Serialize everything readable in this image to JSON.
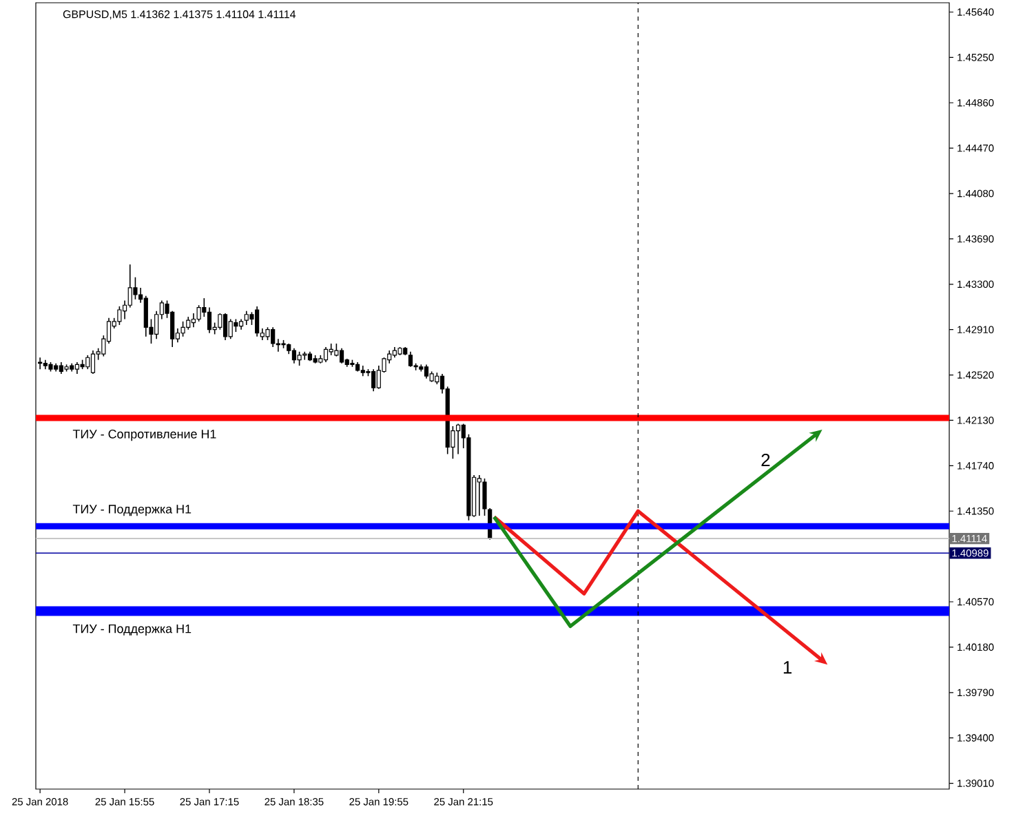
{
  "chart_data": {
    "type": "candlestick",
    "title": "GBPUSD,M5  1.41362 1.41375 1.41104 1.41114",
    "x": [
      "2018-01-25T14:35",
      "2018-01-25T14:40",
      "2018-01-25T14:45",
      "2018-01-25T14:50",
      "2018-01-25T14:55",
      "2018-01-25T15:00",
      "2018-01-25T15:05",
      "2018-01-25T15:10",
      "2018-01-25T15:15",
      "2018-01-25T15:20",
      "2018-01-25T15:25",
      "2018-01-25T15:30",
      "2018-01-25T15:35",
      "2018-01-25T15:40",
      "2018-01-25T15:45",
      "2018-01-25T15:50",
      "2018-01-25T15:55",
      "2018-01-25T16:00",
      "2018-01-25T16:05",
      "2018-01-25T16:10",
      "2018-01-25T16:15",
      "2018-01-25T16:20",
      "2018-01-25T16:25",
      "2018-01-25T16:30",
      "2018-01-25T16:35",
      "2018-01-25T16:40",
      "2018-01-25T16:45",
      "2018-01-25T16:50",
      "2018-01-25T16:55",
      "2018-01-25T17:00",
      "2018-01-25T17:05",
      "2018-01-25T17:10",
      "2018-01-25T17:15",
      "2018-01-25T17:20",
      "2018-01-25T17:25",
      "2018-01-25T17:30",
      "2018-01-25T17:35",
      "2018-01-25T17:40",
      "2018-01-25T17:45",
      "2018-01-25T17:50",
      "2018-01-25T17:55",
      "2018-01-25T18:00",
      "2018-01-25T18:05",
      "2018-01-25T18:10",
      "2018-01-25T18:15",
      "2018-01-25T18:20",
      "2018-01-25T18:25",
      "2018-01-25T18:30",
      "2018-01-25T18:35",
      "2018-01-25T18:40",
      "2018-01-25T18:45",
      "2018-01-25T18:50",
      "2018-01-25T18:55",
      "2018-01-25T19:00",
      "2018-01-25T19:05",
      "2018-01-25T19:10",
      "2018-01-25T19:15",
      "2018-01-25T19:20",
      "2018-01-25T19:25",
      "2018-01-25T19:30",
      "2018-01-25T19:35",
      "2018-01-25T19:40",
      "2018-01-25T19:45",
      "2018-01-25T19:50",
      "2018-01-25T19:55",
      "2018-01-25T20:00",
      "2018-01-25T20:05",
      "2018-01-25T20:10",
      "2018-01-25T20:15",
      "2018-01-25T20:20",
      "2018-01-25T20:25",
      "2018-01-25T20:30",
      "2018-01-25T20:35",
      "2018-01-25T20:40",
      "2018-01-25T20:45",
      "2018-01-25T20:50",
      "2018-01-25T20:55",
      "2018-01-25T21:00",
      "2018-01-25T21:05",
      "2018-01-25T21:10",
      "2018-01-25T21:15",
      "2018-01-25T21:20",
      "2018-01-25T21:25",
      "2018-01-25T21:30",
      "2018-01-25T21:35",
      "2018-01-25T21:40"
    ],
    "ohlc": [
      [
        1.4263,
        1.4267,
        1.4257,
        1.4262
      ],
      [
        1.4262,
        1.4265,
        1.4257,
        1.426
      ],
      [
        1.4261,
        1.4263,
        1.4255,
        1.4257
      ],
      [
        1.426,
        1.4262,
        1.4255,
        1.4257
      ],
      [
        1.426,
        1.4263,
        1.4253,
        1.4255
      ],
      [
        1.4257,
        1.4261,
        1.4255,
        1.4259
      ],
      [
        1.426,
        1.4262,
        1.4255,
        1.4257
      ],
      [
        1.4257,
        1.4263,
        1.4253,
        1.4261
      ],
      [
        1.4261,
        1.4265,
        1.4257,
        1.4259
      ],
      [
        1.4259,
        1.4269,
        1.4257,
        1.4267
      ],
      [
        1.4254,
        1.4273,
        1.4253,
        1.427
      ],
      [
        1.427,
        1.4275,
        1.4265,
        1.4272
      ],
      [
        1.427,
        1.4286,
        1.4268,
        1.4283
      ],
      [
        1.4281,
        1.4301,
        1.4279,
        1.4298
      ],
      [
        1.4294,
        1.4301,
        1.4292,
        1.4298
      ],
      [
        1.4298,
        1.4311,
        1.4295,
        1.4308
      ],
      [
        1.4307,
        1.4316,
        1.43,
        1.4312
      ],
      [
        1.4312,
        1.4347,
        1.431,
        1.4327
      ],
      [
        1.4327,
        1.4336,
        1.4317,
        1.4321
      ],
      [
        1.4321,
        1.4327,
        1.4314,
        1.4317
      ],
      [
        1.4318,
        1.432,
        1.4285,
        1.4293
      ],
      [
        1.4293,
        1.43,
        1.4279,
        1.4287
      ],
      [
        1.4287,
        1.4307,
        1.4283,
        1.4304
      ],
      [
        1.4304,
        1.4316,
        1.43,
        1.4314
      ],
      [
        1.4313,
        1.4316,
        1.4301,
        1.4305
      ],
      [
        1.4306,
        1.4307,
        1.4276,
        1.4283
      ],
      [
        1.4283,
        1.4292,
        1.428,
        1.4288
      ],
      [
        1.4288,
        1.4298,
        1.4285,
        1.4293
      ],
      [
        1.4293,
        1.4302,
        1.4291,
        1.4299
      ],
      [
        1.4297,
        1.4305,
        1.4293,
        1.43
      ],
      [
        1.43,
        1.4312,
        1.4298,
        1.431
      ],
      [
        1.431,
        1.4318,
        1.4302,
        1.4306
      ],
      [
        1.4306,
        1.431,
        1.4288,
        1.4291
      ],
      [
        1.4291,
        1.4297,
        1.4287,
        1.4293
      ],
      [
        1.4293,
        1.4305,
        1.4291,
        1.4304
      ],
      [
        1.4304,
        1.4305,
        1.4282,
        1.4285
      ],
      [
        1.4285,
        1.43,
        1.4283,
        1.4298
      ],
      [
        1.4297,
        1.43,
        1.4289,
        1.4294
      ],
      [
        1.4294,
        1.43,
        1.4291,
        1.4298
      ],
      [
        1.4299,
        1.4307,
        1.4295,
        1.4304
      ],
      [
        1.4304,
        1.4306,
        1.4295,
        1.43
      ],
      [
        1.4308,
        1.4311,
        1.4285,
        1.4288
      ],
      [
        1.4285,
        1.4292,
        1.4282,
        1.4288
      ],
      [
        1.4285,
        1.4293,
        1.4282,
        1.4291
      ],
      [
        1.4291,
        1.4293,
        1.4276,
        1.4279
      ],
      [
        1.4279,
        1.4283,
        1.4272,
        1.4278
      ],
      [
        1.4279,
        1.4282,
        1.4275,
        1.4278
      ],
      [
        1.4278,
        1.4279,
        1.427,
        1.4273
      ],
      [
        1.4273,
        1.4275,
        1.4262,
        1.4265
      ],
      [
        1.4265,
        1.4272,
        1.426,
        1.4269
      ],
      [
        1.4269,
        1.4272,
        1.4265,
        1.427
      ],
      [
        1.427,
        1.4272,
        1.4264,
        1.4265
      ],
      [
        1.4266,
        1.4269,
        1.4262,
        1.4263
      ],
      [
        1.4263,
        1.4269,
        1.4262,
        1.4266
      ],
      [
        1.4265,
        1.4276,
        1.4263,
        1.4274
      ],
      [
        1.4272,
        1.4279,
        1.4269,
        1.4274
      ],
      [
        1.4269,
        1.4279,
        1.4268,
        1.4273
      ],
      [
        1.4273,
        1.4275,
        1.4262,
        1.4263
      ],
      [
        1.4265,
        1.4266,
        1.4259,
        1.4261
      ],
      [
        1.4262,
        1.4265,
        1.4259,
        1.4261
      ],
      [
        1.4261,
        1.4263,
        1.4255,
        1.4256
      ],
      [
        1.4256,
        1.426,
        1.4251,
        1.4254
      ],
      [
        1.4255,
        1.4257,
        1.4251,
        1.4254
      ],
      [
        1.4255,
        1.4257,
        1.4238,
        1.4241
      ],
      [
        1.4241,
        1.426,
        1.424,
        1.4256
      ],
      [
        1.4255,
        1.4267,
        1.4254,
        1.4266
      ],
      [
        1.4265,
        1.4273,
        1.4262,
        1.427
      ],
      [
        1.4269,
        1.4276,
        1.4267,
        1.4273
      ],
      [
        1.427,
        1.4276,
        1.4269,
        1.4275
      ],
      [
        1.4275,
        1.4276,
        1.4269,
        1.427
      ],
      [
        1.4269,
        1.4272,
        1.4259,
        1.426
      ],
      [
        1.426,
        1.4262,
        1.4256,
        1.4259
      ],
      [
        1.4259,
        1.4261,
        1.4255,
        1.4257
      ],
      [
        1.4259,
        1.4261,
        1.4249,
        1.4251
      ],
      [
        1.4247,
        1.4255,
        1.4246,
        1.4253
      ],
      [
        1.4246,
        1.4254,
        1.4244,
        1.4251
      ],
      [
        1.4251,
        1.4253,
        1.4236,
        1.424
      ],
      [
        1.424,
        1.4242,
        1.4184,
        1.419
      ],
      [
        1.419,
        1.4208,
        1.418,
        1.4204
      ],
      [
        1.4204,
        1.421,
        1.4184,
        1.4209
      ],
      [
        1.4209,
        1.421,
        1.4189,
        1.4198
      ],
      [
        1.4198,
        1.4201,
        1.4127,
        1.4131
      ],
      [
        1.4131,
        1.4166,
        1.413,
        1.4164
      ],
      [
        1.416,
        1.4166,
        1.4131,
        1.4163
      ],
      [
        1.416,
        1.4163,
        1.4131,
        1.4137
      ],
      [
        1.41362,
        1.41375,
        1.41104,
        1.41114
      ]
    ],
    "annotations": [
      "1",
      "2"
    ],
    "xlim": [
      "2018-01-25T14:31",
      "2018-01-26T04:54"
    ],
    "xticks": [
      {
        "value": "2018-01-25T14:35",
        "label": "25 Jan 2018"
      },
      {
        "value": "2018-01-25T15:55",
        "label": "25 Jan 15:55"
      },
      {
        "value": "2018-01-25T17:15",
        "label": "25 Jan 17:15"
      },
      {
        "value": "2018-01-25T18:35",
        "label": "25 Jan 18:35"
      },
      {
        "value": "2018-01-25T19:55",
        "label": "25 Jan 19:55"
      },
      {
        "value": "2018-01-25T21:15",
        "label": "25 Jan 21:15"
      }
    ],
    "ylim": [
      1.3896,
      1.4572
    ],
    "yticks": [
      {
        "value": 1.4564,
        "label": "1.45640"
      },
      {
        "value": 1.4525,
        "label": "1.45250"
      },
      {
        "value": 1.4486,
        "label": "1.44860"
      },
      {
        "value": 1.4447,
        "label": "1.44470"
      },
      {
        "value": 1.4408,
        "label": "1.44080"
      },
      {
        "value": 1.4369,
        "label": "1.43690"
      },
      {
        "value": 1.433,
        "label": "1.43300"
      },
      {
        "value": 1.4291,
        "label": "1.42910"
      },
      {
        "value": 1.4252,
        "label": "1.42520"
      },
      {
        "value": 1.4213,
        "label": "1.42130"
      },
      {
        "value": 1.4174,
        "label": "1.41740"
      },
      {
        "value": 1.4135,
        "label": "1.41350"
      },
      {
        "value": 1.4057,
        "label": "1.40570"
      },
      {
        "value": 1.4018,
        "label": "1.40180"
      },
      {
        "value": 1.3979,
        "label": "1.39790"
      },
      {
        "value": 1.394,
        "label": "1.39400"
      },
      {
        "value": 1.3901,
        "label": "1.39010"
      }
    ],
    "ref_lines": [
      {
        "axis": "y",
        "value": 1.4215,
        "label": "ТИУ - Сопротивление H1",
        "color": "#ff0000"
      },
      {
        "axis": "y",
        "value": 1.4122,
        "label": "ТИУ - Поддержка H1",
        "color": "#0000ff"
      },
      {
        "axis": "y",
        "value": 1.4049,
        "label": "ТИУ - Поддержка H1",
        "color": "#0000ff"
      },
      {
        "axis": "y",
        "value": 1.41114,
        "label": "1.41114",
        "color": "#c0c0c0"
      },
      {
        "axis": "y",
        "value": 1.40989,
        "label": "1.40989",
        "color": "#0000a0"
      },
      {
        "axis": "x",
        "value": "2018-01-26T00:00",
        "color": "#000000",
        "line_style": "dashed"
      }
    ]
  }
}
